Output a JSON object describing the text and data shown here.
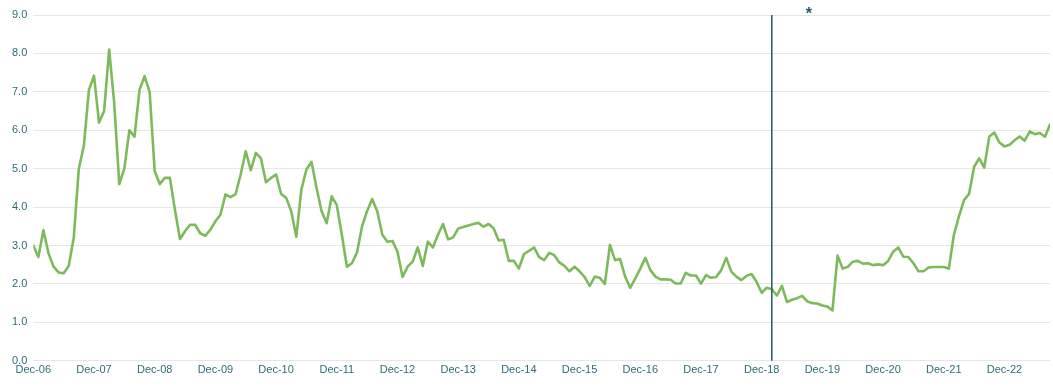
{
  "chart_data": {
    "type": "line",
    "x": [
      "2006-12",
      "2007-01",
      "2007-02",
      "2007-03",
      "2007-04",
      "2007-05",
      "2007-06",
      "2007-07",
      "2007-08",
      "2007-09",
      "2007-10",
      "2007-11",
      "2007-12",
      "2008-01",
      "2008-02",
      "2008-03",
      "2008-04",
      "2008-05",
      "2008-06",
      "2008-07",
      "2008-08",
      "2008-09",
      "2008-10",
      "2008-11",
      "2008-12",
      "2009-01",
      "2009-02",
      "2009-03",
      "2009-04",
      "2009-05",
      "2009-06",
      "2009-07",
      "2009-08",
      "2009-09",
      "2009-10",
      "2009-11",
      "2009-12",
      "2010-01",
      "2010-02",
      "2010-03",
      "2010-04",
      "2010-05",
      "2010-06",
      "2010-07",
      "2010-08",
      "2010-09",
      "2010-10",
      "2010-11",
      "2010-12",
      "2011-01",
      "2011-02",
      "2011-03",
      "2011-04",
      "2011-05",
      "2011-06",
      "2011-07",
      "2011-08",
      "2011-09",
      "2011-10",
      "2011-11",
      "2011-12",
      "2012-01",
      "2012-02",
      "2012-03",
      "2012-04",
      "2012-05",
      "2012-06",
      "2012-07",
      "2012-08",
      "2012-09",
      "2012-10",
      "2012-11",
      "2012-12",
      "2013-01",
      "2013-02",
      "2013-03",
      "2013-04",
      "2013-05",
      "2013-06",
      "2013-07",
      "2013-08",
      "2013-09",
      "2013-10",
      "2013-11",
      "2013-12",
      "2014-01",
      "2014-02",
      "2014-03",
      "2014-04",
      "2014-05",
      "2014-06",
      "2014-07",
      "2014-08",
      "2014-09",
      "2014-10",
      "2014-11",
      "2014-12",
      "2015-01",
      "2015-02",
      "2015-03",
      "2015-04",
      "2015-05",
      "2015-06",
      "2015-07",
      "2015-08",
      "2015-09",
      "2015-10",
      "2015-11",
      "2015-12",
      "2016-01",
      "2016-02",
      "2016-03",
      "2016-04",
      "2016-05",
      "2016-06",
      "2016-07",
      "2016-08",
      "2016-09",
      "2016-10",
      "2016-11",
      "2016-12",
      "2017-01",
      "2017-02",
      "2017-03",
      "2017-04",
      "2017-05",
      "2017-06",
      "2017-07",
      "2017-08",
      "2017-09",
      "2017-10",
      "2017-11",
      "2017-12",
      "2018-01",
      "2018-02",
      "2018-03",
      "2018-04",
      "2018-05",
      "2018-06",
      "2018-07",
      "2018-08",
      "2018-09",
      "2018-10",
      "2018-11",
      "2018-12",
      "2019-01",
      "2019-02",
      "2019-03",
      "2019-04",
      "2019-05",
      "2019-06",
      "2019-07",
      "2019-08",
      "2019-09",
      "2019-10",
      "2019-11",
      "2019-12",
      "2020-01",
      "2020-02",
      "2020-03",
      "2020-04",
      "2020-05",
      "2020-06",
      "2020-07",
      "2020-08",
      "2020-09",
      "2020-10",
      "2020-11",
      "2020-12",
      "2021-01",
      "2021-02",
      "2021-03",
      "2021-04",
      "2021-05",
      "2021-06",
      "2021-07",
      "2021-08",
      "2021-09",
      "2021-10",
      "2021-11",
      "2021-12",
      "2022-01",
      "2022-02",
      "2022-03",
      "2022-04",
      "2022-05",
      "2022-06",
      "2022-07",
      "2022-08",
      "2022-09",
      "2022-10",
      "2022-11",
      "2022-12",
      "2023-01",
      "2023-02",
      "2023-03",
      "2023-04",
      "2023-05",
      "2023-06",
      "2023-07",
      "2023-08",
      "2023-09"
    ],
    "series": [
      {
        "color": "#7dba5c",
        "values": [
          3.0,
          2.7,
          3.4,
          2.8,
          2.45,
          2.3,
          2.28,
          2.47,
          3.2,
          5.0,
          5.6,
          7.05,
          7.42,
          6.2,
          6.5,
          8.1,
          6.7,
          4.6,
          5.0,
          6.0,
          5.83,
          7.05,
          7.41,
          7.0,
          4.94,
          4.6,
          4.76,
          4.76,
          3.93,
          3.17,
          3.37,
          3.54,
          3.54,
          3.32,
          3.25,
          3.41,
          3.63,
          3.8,
          4.33,
          4.26,
          4.34,
          4.85,
          5.45,
          4.96,
          5.41,
          5.27,
          4.65,
          4.76,
          4.85,
          4.34,
          4.24,
          3.89,
          3.23,
          4.46,
          4.98,
          5.18,
          4.5,
          3.89,
          3.58,
          4.28,
          4.05,
          3.28,
          2.45,
          2.54,
          2.82,
          3.5,
          3.9,
          4.21,
          3.89,
          3.28,
          3.1,
          3.12,
          2.84,
          2.18,
          2.45,
          2.58,
          2.95,
          2.47,
          3.1,
          2.95,
          3.28,
          3.56,
          3.16,
          3.21,
          3.44,
          3.48,
          3.52,
          3.56,
          3.59,
          3.49,
          3.56,
          3.45,
          3.13,
          3.15,
          2.6,
          2.6,
          2.4,
          2.78,
          2.86,
          2.95,
          2.7,
          2.62,
          2.81,
          2.75,
          2.56,
          2.47,
          2.33,
          2.45,
          2.33,
          2.18,
          1.95,
          2.19,
          2.16,
          2.0,
          3.02,
          2.62,
          2.65,
          2.19,
          1.9,
          2.14,
          2.4,
          2.68,
          2.36,
          2.19,
          2.12,
          2.12,
          2.11,
          2.01,
          2.01,
          2.29,
          2.22,
          2.22,
          2.01,
          2.23,
          2.16,
          2.18,
          2.36,
          2.68,
          2.32,
          2.19,
          2.1,
          2.21,
          2.26,
          2.05,
          1.77,
          1.9,
          1.86,
          1.7,
          1.95,
          1.53,
          1.59,
          1.63,
          1.69,
          1.55,
          1.5,
          1.49,
          1.44,
          1.41,
          1.31,
          2.74,
          2.4,
          2.44,
          2.58,
          2.6,
          2.53,
          2.54,
          2.49,
          2.51,
          2.49,
          2.6,
          2.84,
          2.95,
          2.71,
          2.7,
          2.54,
          2.33,
          2.33,
          2.43,
          2.44,
          2.44,
          2.44,
          2.4,
          3.28,
          3.76,
          4.18,
          4.34,
          5.05,
          5.27,
          5.03,
          5.84,
          5.94,
          5.68,
          5.58,
          5.62,
          5.74,
          5.84,
          5.73,
          5.97,
          5.9,
          5.93,
          5.83,
          6.15
        ]
      }
    ],
    "xlim": [
      "2006-12",
      "2023-09"
    ],
    "xticks": [
      {
        "value": "2006-12",
        "label": "Dec-06"
      },
      {
        "value": "2007-12",
        "label": "Dec-07"
      },
      {
        "value": "2008-12",
        "label": "Dec-08"
      },
      {
        "value": "2009-12",
        "label": "Dec-09"
      },
      {
        "value": "2010-12",
        "label": "Dec-10"
      },
      {
        "value": "2011-12",
        "label": "Dec-11"
      },
      {
        "value": "2012-12",
        "label": "Dec-12"
      },
      {
        "value": "2013-12",
        "label": "Dec-13"
      },
      {
        "value": "2014-12",
        "label": "Dec-14"
      },
      {
        "value": "2015-12",
        "label": "Dec-15"
      },
      {
        "value": "2016-12",
        "label": "Dec-16"
      },
      {
        "value": "2017-12",
        "label": "Dec-17"
      },
      {
        "value": "2018-12",
        "label": "Dec-18"
      },
      {
        "value": "2019-12",
        "label": "Dec-19"
      },
      {
        "value": "2020-12",
        "label": "Dec-20"
      },
      {
        "value": "2021-12",
        "label": "Dec-21"
      },
      {
        "value": "2022-12",
        "label": "Dec-22"
      }
    ],
    "ylim": [
      0,
      9
    ],
    "yticks": [
      {
        "value": 0,
        "label": "0.0"
      },
      {
        "value": 1,
        "label": "1.0"
      },
      {
        "value": 2,
        "label": "2.0"
      },
      {
        "value": 3,
        "label": "3.0"
      },
      {
        "value": 4,
        "label": "4.0"
      },
      {
        "value": 5,
        "label": "5.0"
      },
      {
        "value": 6,
        "label": "6.0"
      },
      {
        "value": 7,
        "label": "7.0"
      },
      {
        "value": 8,
        "label": "8.0"
      },
      {
        "value": 9,
        "label": "9.0"
      }
    ],
    "ref_lines": [
      {
        "axis": "x",
        "value": "2019-02",
        "label": "*",
        "color": "#1f5a6b"
      }
    ],
    "grid": "y",
    "legend": false,
    "marker": "none",
    "line_style": "solid"
  }
}
